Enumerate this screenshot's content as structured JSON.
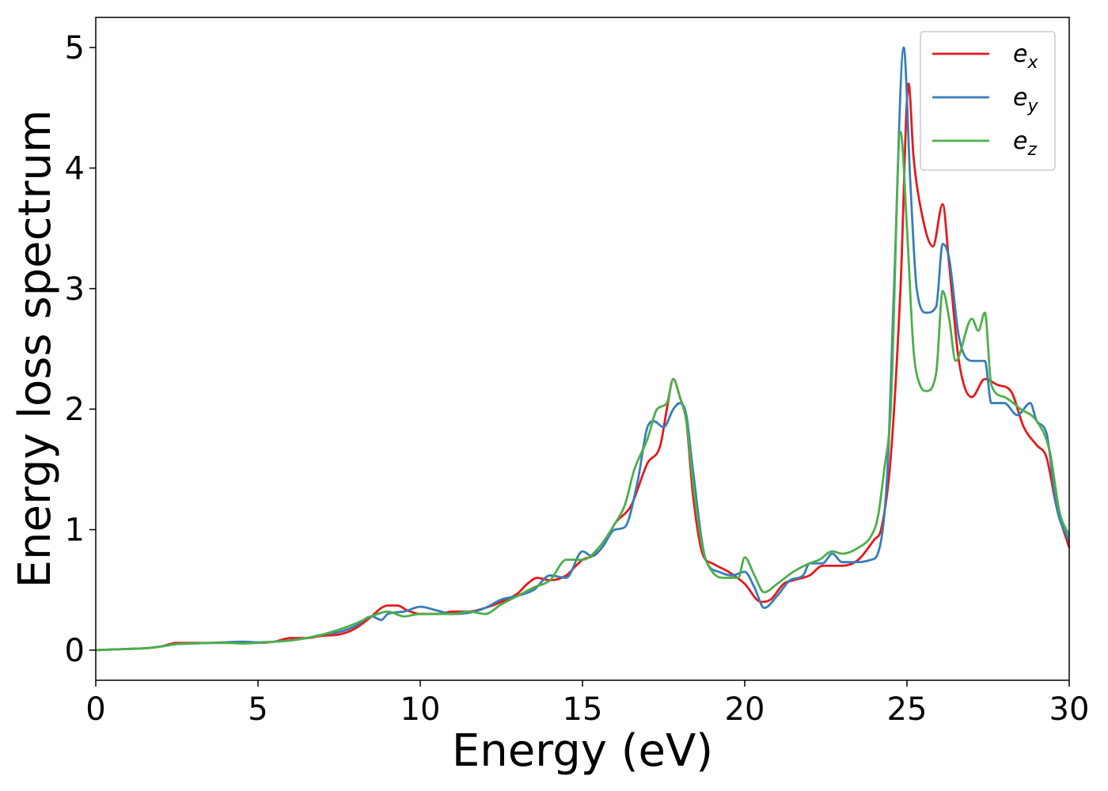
{
  "chart_data": {
    "type": "line",
    "xlabel": "Energy (eV)",
    "ylabel": "Energy loss spectrum",
    "xlim": [
      0,
      30
    ],
    "ylim": [
      -0.25,
      5.25
    ],
    "xticks": [
      0,
      5,
      10,
      15,
      20,
      25,
      30
    ],
    "xtick_labels": [
      "0",
      "5",
      "10",
      "15",
      "20",
      "25",
      "30"
    ],
    "yticks": [
      0,
      1,
      2,
      3,
      4,
      5
    ],
    "ytick_labels": [
      "0",
      "1",
      "2",
      "3",
      "4",
      "5"
    ],
    "grid": false,
    "legend_position": "top-right",
    "series": [
      {
        "name": "e_x",
        "legend_main": "e",
        "legend_sub": "x",
        "color": "#e41a1c",
        "points": [
          [
            0,
            0
          ],
          [
            1,
            0.01
          ],
          [
            1.5,
            0.015
          ],
          [
            2,
            0.03
          ],
          [
            2.5,
            0.06
          ],
          [
            3,
            0.06
          ],
          [
            3.5,
            0.06
          ],
          [
            4,
            0.06
          ],
          [
            4.5,
            0.065
          ],
          [
            5,
            0.06
          ],
          [
            5.5,
            0.07
          ],
          [
            6,
            0.1
          ],
          [
            6.5,
            0.1
          ],
          [
            7,
            0.12
          ],
          [
            7.5,
            0.13
          ],
          [
            8,
            0.18
          ],
          [
            8.5,
            0.28
          ],
          [
            8.8,
            0.35
          ],
          [
            9,
            0.37
          ],
          [
            9.3,
            0.37
          ],
          [
            9.6,
            0.33
          ],
          [
            10,
            0.3
          ],
          [
            10.5,
            0.3
          ],
          [
            11,
            0.32
          ],
          [
            11.5,
            0.32
          ],
          [
            12,
            0.35
          ],
          [
            12.5,
            0.4
          ],
          [
            13,
            0.47
          ],
          [
            13.3,
            0.55
          ],
          [
            13.6,
            0.6
          ],
          [
            14,
            0.58
          ],
          [
            14.5,
            0.62
          ],
          [
            14.8,
            0.7
          ],
          [
            15,
            0.75
          ],
          [
            15.3,
            0.78
          ],
          [
            15.6,
            0.85
          ],
          [
            16,
            1.05
          ],
          [
            16.5,
            1.2
          ],
          [
            17,
            1.55
          ],
          [
            17.4,
            1.7
          ],
          [
            17.6,
            2.0
          ],
          [
            17.8,
            2.25
          ],
          [
            18,
            2.1
          ],
          [
            18.2,
            1.9
          ],
          [
            18.4,
            1.3
          ],
          [
            18.7,
            0.8
          ],
          [
            19,
            0.72
          ],
          [
            19.5,
            0.65
          ],
          [
            20,
            0.55
          ],
          [
            20.5,
            0.4
          ],
          [
            20.8,
            0.42
          ],
          [
            21.2,
            0.55
          ],
          [
            21.5,
            0.58
          ],
          [
            22,
            0.62
          ],
          [
            22.4,
            0.7
          ],
          [
            23,
            0.7
          ],
          [
            23.5,
            0.75
          ],
          [
            24,
            0.92
          ],
          [
            24.2,
            1.0
          ],
          [
            24.5,
            1.6
          ],
          [
            24.8,
            3.0
          ],
          [
            25.05,
            4.7
          ],
          [
            25.2,
            4.1
          ],
          [
            25.4,
            3.7
          ],
          [
            25.8,
            3.35
          ],
          [
            26.1,
            3.7
          ],
          [
            26.3,
            3.2
          ],
          [
            26.6,
            2.4
          ],
          [
            27,
            2.1
          ],
          [
            27.4,
            2.25
          ],
          [
            27.8,
            2.2
          ],
          [
            28.2,
            2.15
          ],
          [
            28.6,
            1.85
          ],
          [
            29,
            1.7
          ],
          [
            29.3,
            1.6
          ],
          [
            29.6,
            1.2
          ],
          [
            30,
            0.85
          ]
        ]
      },
      {
        "name": "e_y",
        "legend_main": "e",
        "legend_sub": "y",
        "color": "#377eb8",
        "points": [
          [
            0,
            0
          ],
          [
            1,
            0.01
          ],
          [
            1.5,
            0.015
          ],
          [
            2,
            0.03
          ],
          [
            2.5,
            0.05
          ],
          [
            3,
            0.055
          ],
          [
            3.5,
            0.06
          ],
          [
            4,
            0.065
          ],
          [
            4.5,
            0.07
          ],
          [
            5,
            0.065
          ],
          [
            5.5,
            0.07
          ],
          [
            6,
            0.08
          ],
          [
            6.5,
            0.1
          ],
          [
            7,
            0.13
          ],
          [
            7.5,
            0.15
          ],
          [
            8,
            0.2
          ],
          [
            8.5,
            0.28
          ],
          [
            8.8,
            0.25
          ],
          [
            9,
            0.3
          ],
          [
            9.5,
            0.32
          ],
          [
            10,
            0.36
          ],
          [
            10.5,
            0.33
          ],
          [
            11,
            0.3
          ],
          [
            11.5,
            0.31
          ],
          [
            12,
            0.35
          ],
          [
            12.5,
            0.42
          ],
          [
            13,
            0.45
          ],
          [
            13.5,
            0.5
          ],
          [
            14,
            0.62
          ],
          [
            14.5,
            0.6
          ],
          [
            15,
            0.82
          ],
          [
            15.3,
            0.78
          ],
          [
            15.6,
            0.85
          ],
          [
            16,
            1.0
          ],
          [
            16.3,
            1.02
          ],
          [
            16.7,
            1.4
          ],
          [
            17,
            1.85
          ],
          [
            17.2,
            1.9
          ],
          [
            17.5,
            1.85
          ],
          [
            17.8,
            2.0
          ],
          [
            18,
            2.05
          ],
          [
            18.2,
            1.95
          ],
          [
            18.4,
            1.5
          ],
          [
            18.8,
            0.75
          ],
          [
            19.2,
            0.65
          ],
          [
            19.6,
            0.62
          ],
          [
            20,
            0.65
          ],
          [
            20.3,
            0.52
          ],
          [
            20.6,
            0.35
          ],
          [
            21,
            0.45
          ],
          [
            21.4,
            0.58
          ],
          [
            21.8,
            0.62
          ],
          [
            22,
            0.72
          ],
          [
            22.4,
            0.72
          ],
          [
            22.7,
            0.8
          ],
          [
            23,
            0.73
          ],
          [
            23.5,
            0.73
          ],
          [
            23.9,
            0.75
          ],
          [
            24.1,
            0.8
          ],
          [
            24.4,
            1.5
          ],
          [
            24.6,
            3.0
          ],
          [
            24.9,
            5.0
          ],
          [
            25.1,
            3.9
          ],
          [
            25.3,
            3.0
          ],
          [
            25.6,
            2.8
          ],
          [
            25.9,
            2.85
          ],
          [
            26.1,
            3.37
          ],
          [
            26.3,
            3.25
          ],
          [
            26.6,
            2.6
          ],
          [
            27,
            2.4
          ],
          [
            27.4,
            2.4
          ],
          [
            27.6,
            2.05
          ],
          [
            28,
            2.05
          ],
          [
            28.4,
            1.95
          ],
          [
            28.8,
            2.05
          ],
          [
            29,
            1.9
          ],
          [
            29.3,
            1.8
          ],
          [
            29.6,
            1.2
          ],
          [
            30,
            0.9
          ]
        ]
      },
      {
        "name": "e_z",
        "legend_main": "e",
        "legend_sub": "z",
        "color": "#4daf4a",
        "points": [
          [
            0,
            0
          ],
          [
            1,
            0.01
          ],
          [
            1.5,
            0.015
          ],
          [
            2,
            0.03
          ],
          [
            2.5,
            0.05
          ],
          [
            3,
            0.055
          ],
          [
            3.5,
            0.06
          ],
          [
            4,
            0.06
          ],
          [
            4.5,
            0.055
          ],
          [
            5,
            0.06
          ],
          [
            5.5,
            0.07
          ],
          [
            6,
            0.08
          ],
          [
            6.5,
            0.1
          ],
          [
            7,
            0.13
          ],
          [
            7.5,
            0.17
          ],
          [
            8,
            0.22
          ],
          [
            8.5,
            0.28
          ],
          [
            9,
            0.32
          ],
          [
            9.5,
            0.28
          ],
          [
            10,
            0.3
          ],
          [
            10.5,
            0.3
          ],
          [
            11,
            0.3
          ],
          [
            11.5,
            0.32
          ],
          [
            12,
            0.3
          ],
          [
            12.5,
            0.38
          ],
          [
            13,
            0.45
          ],
          [
            13.5,
            0.52
          ],
          [
            14,
            0.58
          ],
          [
            14.5,
            0.75
          ],
          [
            15,
            0.75
          ],
          [
            15.5,
            0.85
          ],
          [
            16,
            1.05
          ],
          [
            16.3,
            1.2
          ],
          [
            16.6,
            1.5
          ],
          [
            17,
            1.75
          ],
          [
            17.3,
            2.0
          ],
          [
            17.6,
            2.05
          ],
          [
            17.8,
            2.25
          ],
          [
            18,
            2.1
          ],
          [
            18.2,
            1.9
          ],
          [
            18.4,
            1.4
          ],
          [
            18.7,
            0.85
          ],
          [
            19,
            0.65
          ],
          [
            19.4,
            0.6
          ],
          [
            19.8,
            0.6
          ],
          [
            20,
            0.77
          ],
          [
            20.3,
            0.62
          ],
          [
            20.6,
            0.48
          ],
          [
            21,
            0.55
          ],
          [
            21.5,
            0.65
          ],
          [
            22,
            0.72
          ],
          [
            22.3,
            0.75
          ],
          [
            22.7,
            0.82
          ],
          [
            23,
            0.8
          ],
          [
            23.5,
            0.85
          ],
          [
            23.9,
            0.95
          ],
          [
            24.1,
            1.1
          ],
          [
            24.3,
            1.5
          ],
          [
            24.5,
            2.0
          ],
          [
            24.8,
            4.3
          ],
          [
            25.0,
            3.5
          ],
          [
            25.2,
            2.5
          ],
          [
            25.4,
            2.2
          ],
          [
            25.6,
            2.15
          ],
          [
            25.9,
            2.3
          ],
          [
            26.1,
            2.98
          ],
          [
            26.3,
            2.75
          ],
          [
            26.5,
            2.4
          ],
          [
            27,
            2.75
          ],
          [
            27.2,
            2.65
          ],
          [
            27.4,
            2.8
          ],
          [
            27.6,
            2.2
          ],
          [
            28,
            2.1
          ],
          [
            28.5,
            2.0
          ],
          [
            29,
            1.9
          ],
          [
            29.4,
            1.65
          ],
          [
            29.7,
            1.15
          ],
          [
            30,
            0.95
          ]
        ]
      }
    ]
  }
}
